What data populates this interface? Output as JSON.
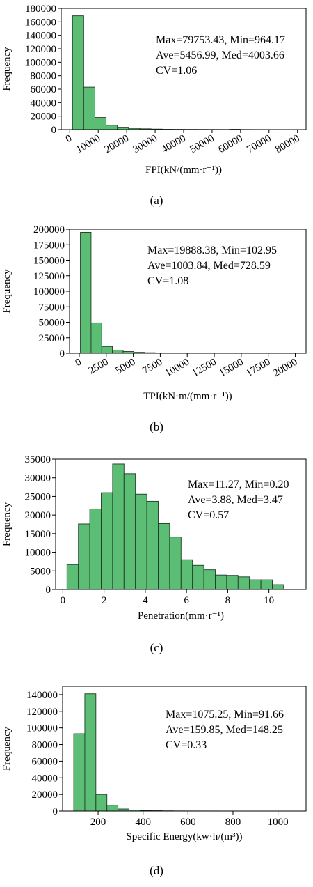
{
  "chart_data": [
    {
      "type": "bar",
      "panel_label": "(a)",
      "xlabel": "FPI(kN/(mm·r⁻¹))",
      "ylabel": "Frequency",
      "xlim": [
        -3000,
        83000
      ],
      "ylim": [
        0,
        180000
      ],
      "xticks": [
        "0",
        "10000",
        "20000",
        "30000",
        "40000",
        "50000",
        "60000",
        "70000",
        "80000"
      ],
      "yticks": [
        "0",
        "20000",
        "40000",
        "60000",
        "80000",
        "100000",
        "120000",
        "140000",
        "160000",
        "180000"
      ],
      "xtick_rotate": true,
      "bin_width": 3939.46,
      "bin_edges_start": 964.17,
      "values": [
        169000,
        63000,
        18000,
        6500,
        3500,
        2000,
        1200,
        800,
        500,
        400,
        350,
        300,
        250,
        200,
        500,
        150,
        100,
        80,
        60,
        40
      ],
      "annotations": [
        "Max=79753.43, Min=964.17",
        "Ave=5456.99, Med=4003.66",
        "CV=1.06"
      ],
      "bar_color": "#5cbd74"
    },
    {
      "type": "bar",
      "panel_label": "(b)",
      "xlabel": "TPI(kN·m/(mm·r⁻¹))",
      "ylabel": "Frequency",
      "xlim": [
        -900,
        21000
      ],
      "ylim": [
        0,
        200000
      ],
      "xticks": [
        "0",
        "2500",
        "5000",
        "7500",
        "10000",
        "12500",
        "15000",
        "17500",
        "20000"
      ],
      "yticks": [
        "0",
        "25000",
        "50000",
        "75000",
        "100000",
        "125000",
        "150000",
        "175000",
        "200000"
      ],
      "xtick_rotate": true,
      "bin_width": 989.27,
      "bin_edges_start": 102.95,
      "values": [
        195000,
        49000,
        11000,
        5000,
        2800,
        1500,
        900,
        600,
        400,
        300,
        250,
        200,
        150,
        120,
        100,
        80,
        60,
        50,
        40,
        30
      ],
      "annotations": [
        "Max=19888.38, Min=102.95",
        "Ave=1003.84, Med=728.59",
        "CV=1.08"
      ],
      "bar_color": "#5cbd74"
    },
    {
      "type": "bar",
      "panel_label": "(c)",
      "xlabel": "Penetration(mm·r⁻¹)",
      "ylabel": "Frequency",
      "xlim": [
        -0.35,
        11.8
      ],
      "ylim": [
        0,
        35000
      ],
      "xticks": [
        "0",
        "2",
        "4",
        "6",
        "8",
        "10"
      ],
      "yticks": [
        "0",
        "5000",
        "10000",
        "15000",
        "20000",
        "25000",
        "30000",
        "35000"
      ],
      "xtick_rotate": false,
      "bin_width": 0.5535,
      "bin_edges_start": 0.2,
      "values": [
        6700,
        17600,
        21600,
        26000,
        33700,
        31100,
        25600,
        23700,
        17700,
        14100,
        8000,
        6500,
        5300,
        3900,
        3800,
        3400,
        2600,
        2600,
        1300
      ],
      "annotations": [
        "Max=11.27, Min=0.20",
        "Ave=3.88, Med=3.47",
        "CV=0.57"
      ],
      "bar_color": "#5cbd74"
    },
    {
      "type": "bar",
      "panel_label": "(d)",
      "xlabel": "Specific Energy(kw·h/(m³))",
      "ylabel": "Frequency",
      "xlim": [
        42,
        1125
      ],
      "ylim": [
        0,
        150000
      ],
      "xticks": [
        "200",
        "400",
        "600",
        "800",
        "1000"
      ],
      "yticks": [
        "0",
        "20000",
        "40000",
        "60000",
        "80000",
        "100000",
        "120000",
        "140000"
      ],
      "xtick_rotate": false,
      "bin_width": 49.18,
      "bin_edges_start": 91.66,
      "values": [
        93000,
        141000,
        20000,
        7000,
        2500,
        1200,
        700,
        400,
        250,
        150,
        120,
        100,
        80,
        60,
        50,
        40,
        30,
        20,
        15,
        10
      ],
      "annotations": [
        "Max=1075.25, Min=91.66",
        "Ave=159.85, Med=148.25",
        "CV=0.33"
      ],
      "bar_color": "#5cbd74"
    }
  ]
}
